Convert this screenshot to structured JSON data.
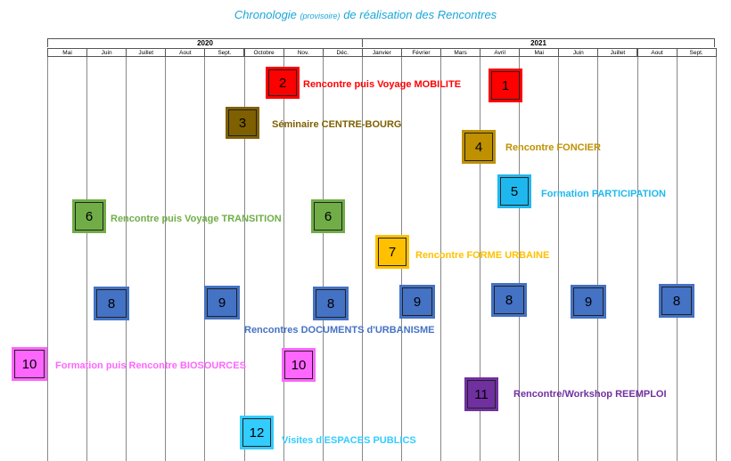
{
  "title": {
    "main_1": "Chronologie",
    "small": "(provisoire)",
    "main_2": "de réalisation des Rencontres"
  },
  "years": [
    "2020",
    "2021"
  ],
  "months": [
    "Mai",
    "Juin",
    "Juillet",
    "Aout",
    "Sept.",
    "Octobre",
    "Nov.",
    "Déc.",
    "Janvier",
    "Février",
    "Mars",
    "Avril",
    "Mai",
    "Juin",
    "Juillet",
    "Aout",
    "Sept."
  ],
  "colors": {
    "mobilite": "#ff0000",
    "centre_bourg": "#7f6000",
    "foncier": "#bf9000",
    "participation": "#1fb8ee",
    "transition": "#70ad47",
    "forme_urbaine": "#ffc000",
    "documents": "#4472c4",
    "biosources": "#ff66ff",
    "reemploi": "#7030a0",
    "espaces_publics": "#33ccff"
  },
  "events": [
    {
      "num": "2",
      "label": "Rencontre puis Voyage MOBILITE",
      "color": "#ff0000"
    },
    {
      "num": "1",
      "label": "",
      "color": "#ff0000"
    },
    {
      "num": "3",
      "label": "Séminaire CENTRE-BOURG",
      "color": "#7f6000"
    },
    {
      "num": "4",
      "label": "Rencontre FONCIER",
      "color": "#bf9000"
    },
    {
      "num": "5",
      "label": "Formation PARTICIPATION",
      "color": "#1fb8ee"
    },
    {
      "num": "6",
      "label": "Rencontre puis Voyage TRANSITION",
      "color": "#70ad47"
    },
    {
      "num": "6",
      "label": "",
      "color": "#70ad47"
    },
    {
      "num": "7",
      "label": "Rencontre FORME URBAINE",
      "color": "#ffc000"
    },
    {
      "num": "8",
      "label": "",
      "color": "#4472c4"
    },
    {
      "num": "9",
      "label": "",
      "color": "#4472c4"
    },
    {
      "num": "8",
      "label": "",
      "color": "#4472c4"
    },
    {
      "num": "9",
      "label": "",
      "color": "#4472c4"
    },
    {
      "num": "8",
      "label": "",
      "color": "#4472c4"
    },
    {
      "num": "9",
      "label": "",
      "color": "#4472c4"
    },
    {
      "num": "8",
      "label": "",
      "color": "#4472c4"
    },
    {
      "num": "10",
      "label": "Formation puis Rencontre BIOSOURCES",
      "color": "#ff66ff"
    },
    {
      "num": "10",
      "label": "",
      "color": "#ff66ff"
    },
    {
      "num": "11",
      "label": "Rencontre/Workshop REEMPLOI",
      "color": "#7030a0"
    },
    {
      "num": "12",
      "label": "Visites d'ESPACES PUBLICS",
      "color": "#33ccff"
    }
  ],
  "documents_label": "Rencontres DOCUMENTS d'URBANISME"
}
